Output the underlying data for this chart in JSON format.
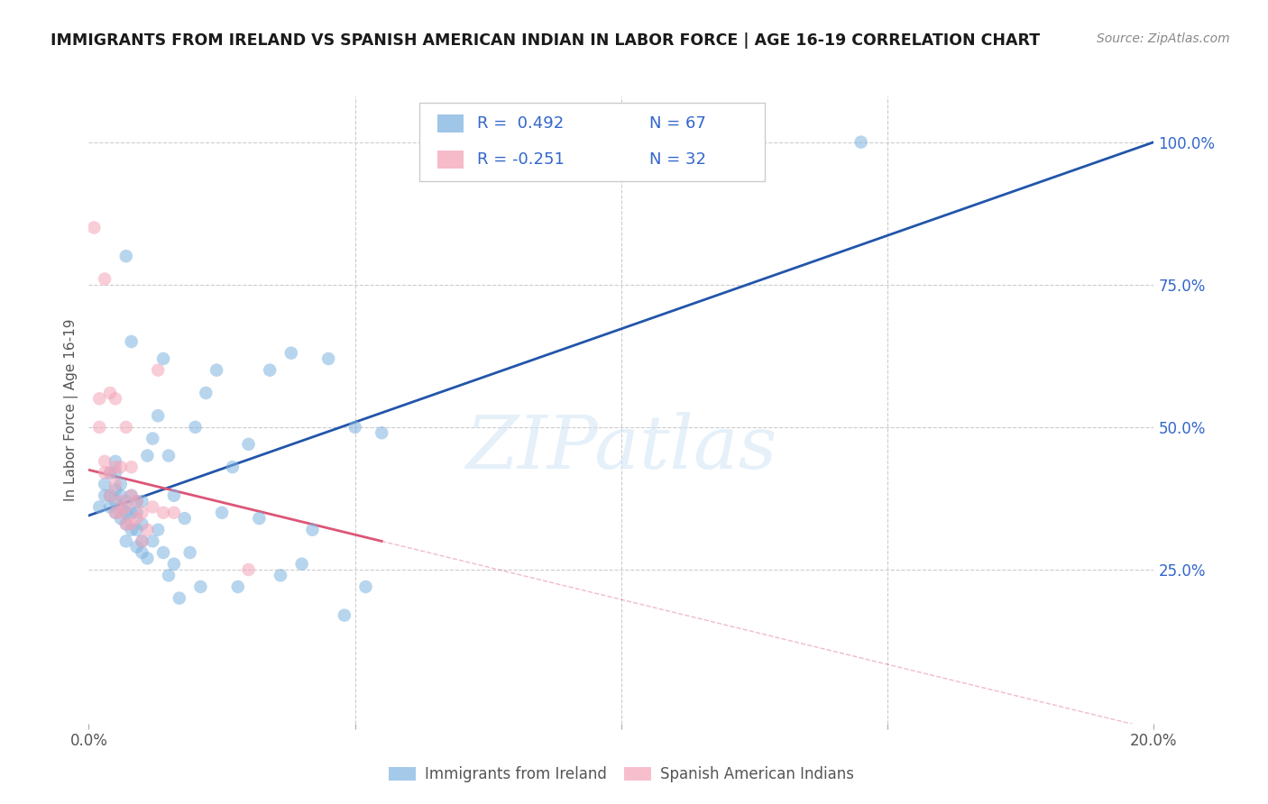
{
  "title": "IMMIGRANTS FROM IRELAND VS SPANISH AMERICAN INDIAN IN LABOR FORCE | AGE 16-19 CORRELATION CHART",
  "source": "Source: ZipAtlas.com",
  "ylabel": "In Labor Force | Age 16-19",
  "xlim": [
    0.0,
    0.2
  ],
  "ylim": [
    -0.02,
    1.08
  ],
  "yticks_right": [
    0.25,
    0.5,
    0.75,
    1.0
  ],
  "yticklabels_right": [
    "25.0%",
    "50.0%",
    "75.0%",
    "100.0%"
  ],
  "xtick_vals": [
    0.0,
    0.05,
    0.1,
    0.15,
    0.2
  ],
  "xticklabels": [
    "0.0%",
    "",
    "",
    "",
    "20.0%"
  ],
  "grid_color": "#cccccc",
  "background_color": "#ffffff",
  "blue_color": "#7fb3e0",
  "pink_color": "#f4a4b8",
  "blue_line_color": "#2255aa",
  "pink_line_color": "#dd5577",
  "watermark": "ZIPatlas",
  "blue_scatter_x": [
    0.002,
    0.003,
    0.003,
    0.004,
    0.004,
    0.004,
    0.005,
    0.005,
    0.005,
    0.005,
    0.005,
    0.006,
    0.006,
    0.006,
    0.006,
    0.007,
    0.007,
    0.007,
    0.007,
    0.007,
    0.008,
    0.008,
    0.008,
    0.008,
    0.009,
    0.009,
    0.009,
    0.009,
    0.01,
    0.01,
    0.01,
    0.01,
    0.011,
    0.011,
    0.012,
    0.012,
    0.013,
    0.013,
    0.014,
    0.014,
    0.015,
    0.015,
    0.016,
    0.016,
    0.017,
    0.018,
    0.019,
    0.02,
    0.021,
    0.022,
    0.024,
    0.025,
    0.027,
    0.028,
    0.03,
    0.032,
    0.034,
    0.036,
    0.038,
    0.04,
    0.042,
    0.045,
    0.048,
    0.05,
    0.052,
    0.055,
    0.145
  ],
  "blue_scatter_y": [
    0.36,
    0.4,
    0.38,
    0.36,
    0.38,
    0.42,
    0.35,
    0.37,
    0.39,
    0.42,
    0.44,
    0.34,
    0.36,
    0.38,
    0.4,
    0.3,
    0.33,
    0.35,
    0.37,
    0.8,
    0.32,
    0.35,
    0.38,
    0.65,
    0.29,
    0.32,
    0.35,
    0.37,
    0.28,
    0.3,
    0.33,
    0.37,
    0.27,
    0.45,
    0.3,
    0.48,
    0.32,
    0.52,
    0.28,
    0.62,
    0.24,
    0.45,
    0.26,
    0.38,
    0.2,
    0.34,
    0.28,
    0.5,
    0.22,
    0.56,
    0.6,
    0.35,
    0.43,
    0.22,
    0.47,
    0.34,
    0.6,
    0.24,
    0.63,
    0.26,
    0.32,
    0.62,
    0.17,
    0.5,
    0.22,
    0.49,
    1.0
  ],
  "pink_scatter_x": [
    0.001,
    0.002,
    0.002,
    0.003,
    0.003,
    0.003,
    0.004,
    0.004,
    0.004,
    0.005,
    0.005,
    0.005,
    0.005,
    0.006,
    0.006,
    0.006,
    0.007,
    0.007,
    0.007,
    0.008,
    0.008,
    0.008,
    0.009,
    0.009,
    0.01,
    0.01,
    0.011,
    0.012,
    0.013,
    0.014,
    0.016,
    0.03
  ],
  "pink_scatter_y": [
    0.85,
    0.5,
    0.55,
    0.42,
    0.44,
    0.76,
    0.38,
    0.42,
    0.56,
    0.35,
    0.4,
    0.43,
    0.55,
    0.35,
    0.37,
    0.43,
    0.33,
    0.36,
    0.5,
    0.33,
    0.38,
    0.43,
    0.34,
    0.37,
    0.3,
    0.35,
    0.32,
    0.36,
    0.6,
    0.35,
    0.35,
    0.25
  ],
  "blue_trend_x0": 0.0,
  "blue_trend_y0": 0.345,
  "blue_trend_x1": 0.2,
  "blue_trend_y1": 1.0,
  "pink_trend_solid_x0": 0.0,
  "pink_trend_solid_y0": 0.425,
  "pink_trend_solid_x1": 0.055,
  "pink_trend_solid_y1": 0.3,
  "pink_trend_dash_x0": 0.055,
  "pink_trend_dash_y0": 0.3,
  "pink_trend_dash_x1": 0.2,
  "pink_trend_dash_y1": -0.03,
  "legend_items": [
    {
      "color": "#7fb3e0",
      "R": "R =  0.492",
      "N": "N = 67"
    },
    {
      "color": "#f4a4b8",
      "R": "R = -0.251",
      "N": "N = 32"
    }
  ],
  "bottom_legend": [
    "Immigrants from Ireland",
    "Spanish American Indians"
  ]
}
